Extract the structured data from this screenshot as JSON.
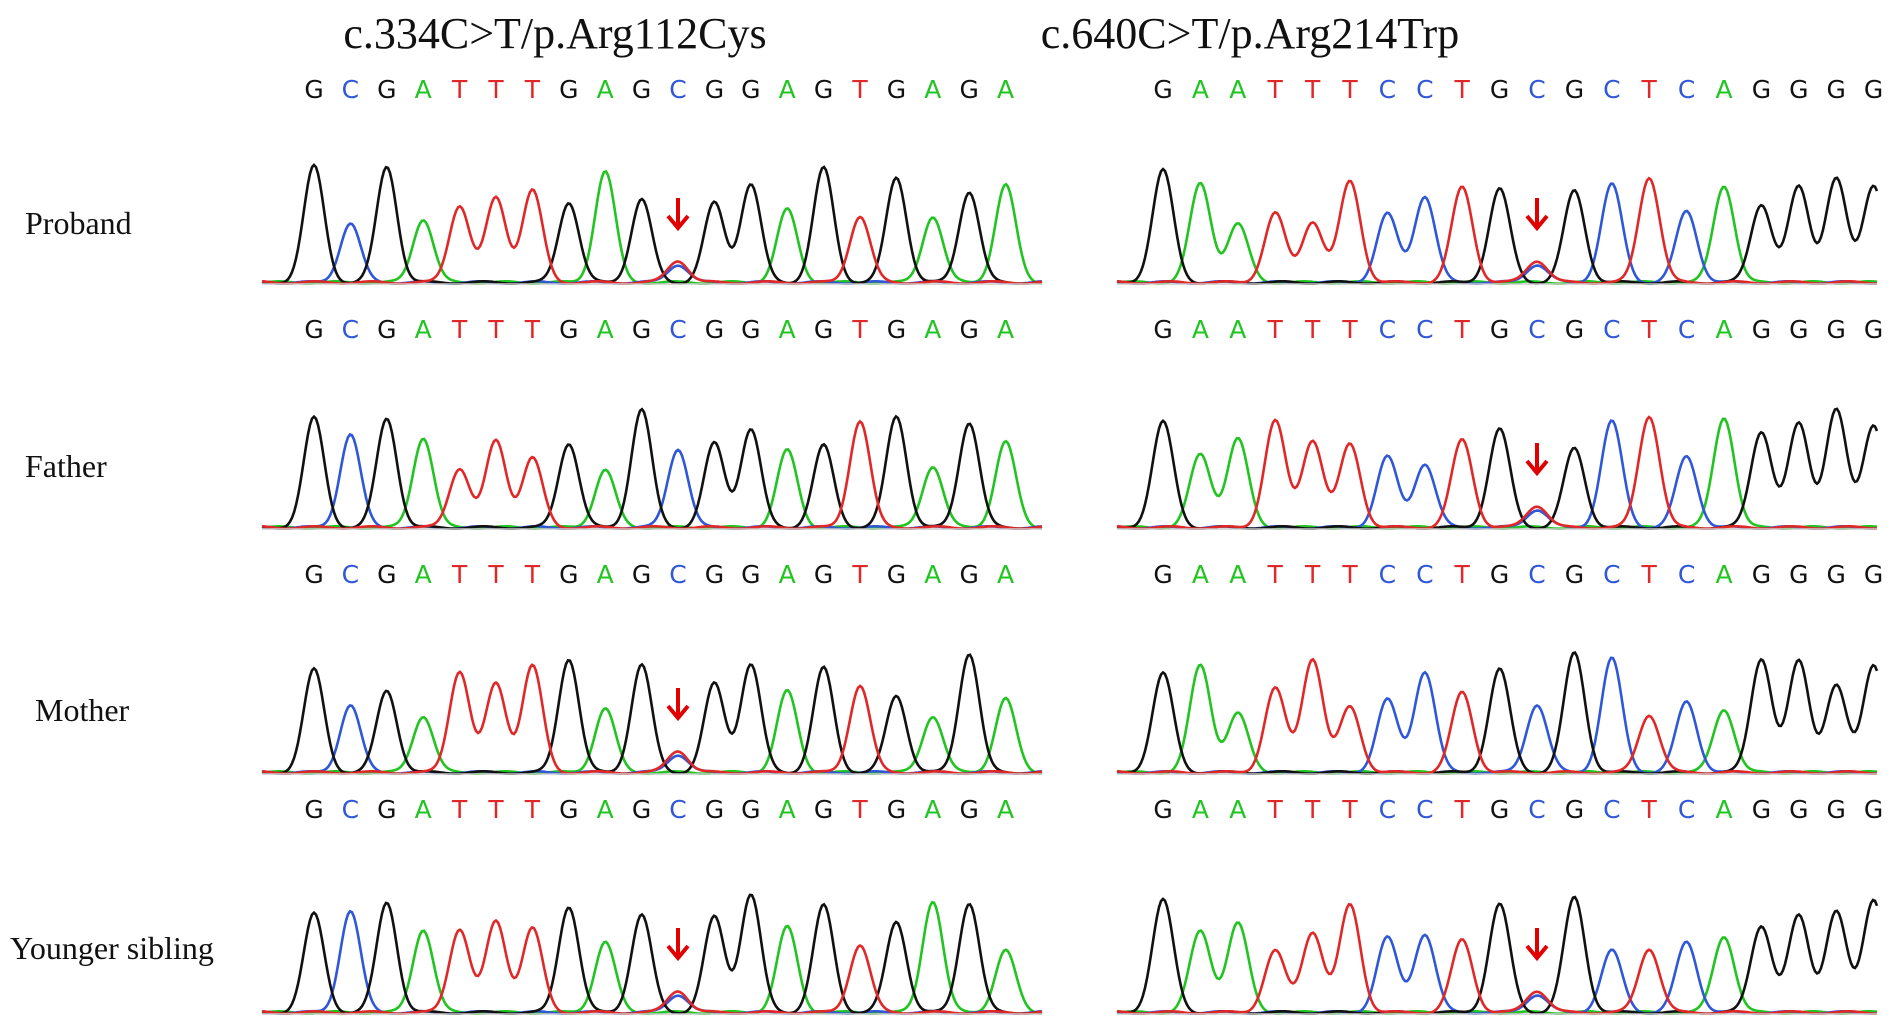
{
  "columns": [
    {
      "title": "c.334C>T/p.Arg112Cys"
    },
    {
      "title": "c.640C>T/p.Arg214Trp"
    }
  ],
  "rows": [
    {
      "label": "Proband"
    },
    {
      "label": "Father"
    },
    {
      "label": "Mother"
    },
    {
      "label": "Younger sibling"
    }
  ],
  "sequences": [
    "GCGATTTGAGCGGAGTGAGA",
    "GAATTTCCTGCGCTCAGGGG"
  ],
  "base_colors": {
    "A": "#21c421",
    "C": "#2f57d8",
    "G": "#111111",
    "T": "#e02828"
  },
  "arrow_color": "#e00000",
  "het_site_index": [
    10,
    10
  ],
  "arrows": [
    [
      true,
      false,
      true,
      true
    ],
    [
      true,
      true,
      false,
      true
    ]
  ]
}
